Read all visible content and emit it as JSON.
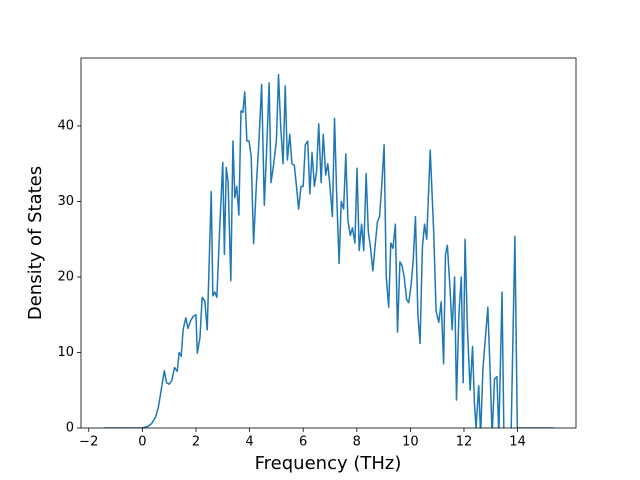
{
  "chart_data": {
    "type": "line",
    "xlabel": "Frequency (THz)",
    "ylabel": "Density of States",
    "x": [
      -1.45,
      -0.5,
      0,
      0.2,
      0.35,
      0.5,
      0.6,
      0.7,
      0.82,
      0.9,
      1.0,
      1.1,
      1.2,
      1.3,
      1.37,
      1.45,
      1.52,
      1.62,
      1.7,
      1.8,
      1.9,
      2.0,
      2.05,
      2.15,
      2.23,
      2.33,
      2.42,
      2.57,
      2.63,
      2.7,
      2.78,
      2.88,
      3.0,
      3.06,
      3.13,
      3.2,
      3.3,
      3.38,
      3.45,
      3.52,
      3.6,
      3.68,
      3.75,
      3.82,
      3.9,
      3.98,
      4.06,
      4.15,
      4.25,
      4.35,
      4.45,
      4.55,
      4.65,
      4.73,
      4.8,
      4.9,
      5.0,
      5.08,
      5.16,
      5.25,
      5.33,
      5.41,
      5.5,
      5.58,
      5.67,
      5.75,
      5.83,
      5.92,
      6.0,
      6.08,
      6.17,
      6.25,
      6.33,
      6.42,
      6.5,
      6.58,
      6.67,
      6.75,
      6.84,
      6.92,
      7.0,
      7.09,
      7.17,
      7.25,
      7.34,
      7.42,
      7.51,
      7.59,
      7.67,
      7.76,
      7.84,
      7.93,
      8.01,
      8.09,
      8.18,
      8.26,
      8.35,
      8.43,
      8.51,
      8.6,
      8.68,
      8.77,
      8.85,
      8.93,
      9.02,
      9.1,
      9.19,
      9.27,
      9.35,
      9.44,
      9.52,
      9.61,
      9.69,
      9.77,
      9.86,
      9.94,
      10.03,
      10.11,
      10.19,
      10.28,
      10.36,
      10.45,
      10.53,
      10.61,
      10.74,
      10.87,
      10.96,
      11.06,
      11.15,
      11.24,
      11.31,
      11.38,
      11.47,
      11.56,
      11.65,
      11.72,
      11.81,
      11.9,
      11.97,
      12.04,
      12.13,
      12.23,
      12.32,
      12.39,
      12.45,
      12.55,
      12.62,
      12.71,
      12.8,
      12.89,
      12.98,
      13.05,
      13.14,
      13.23,
      13.3,
      13.42,
      13.49,
      13.76,
      13.9,
      13.99,
      14.1,
      14.5,
      15.34
    ],
    "series": [
      {
        "color": "#1f77b4",
        "values": [
          0,
          0,
          0,
          0.2,
          0.6,
          1.5,
          2.8,
          5,
          7.6,
          6,
          5.8,
          6.3,
          8,
          7.5,
          10,
          9.5,
          13,
          14.6,
          13.2,
          14.2,
          14.8,
          15,
          9.9,
          12,
          17.3,
          16.8,
          13,
          31.3,
          17.5,
          18,
          17.3,
          26,
          35.2,
          23,
          34.5,
          32.5,
          19.5,
          38,
          30.5,
          32,
          28.2,
          42,
          41.8,
          44.5,
          38,
          38,
          36,
          24.4,
          32,
          38,
          45.5,
          29.5,
          38,
          45.7,
          32.5,
          35,
          38,
          46.8,
          40,
          35,
          45.3,
          35.5,
          38.9,
          35,
          34.8,
          32,
          29,
          32,
          32,
          37.5,
          38,
          31,
          36.5,
          32,
          34,
          40.3,
          32.5,
          38.9,
          33.5,
          35,
          32,
          28,
          41,
          31,
          21.8,
          30,
          29,
          36.3,
          27.5,
          25.5,
          26.5,
          24.5,
          34.4,
          23.5,
          27,
          23.5,
          33.7,
          26,
          24,
          20.8,
          24,
          27.3,
          28,
          32,
          37.5,
          20,
          16,
          24.5,
          23.8,
          27,
          12.7,
          22,
          21.5,
          20,
          17,
          16.6,
          19,
          22.5,
          28,
          15,
          11.2,
          24,
          27,
          25,
          36.8,
          26,
          15.5,
          14,
          16.7,
          8.5,
          23,
          24.2,
          19,
          13,
          20,
          3.7,
          15,
          20,
          6,
          25,
          13,
          5,
          10.8,
          3.3,
          0,
          5.6,
          -1,
          8,
          12,
          16,
          7,
          -1,
          6.5,
          6.8,
          -1,
          18,
          -1,
          -0.5,
          25.4,
          0,
          0,
          0,
          0
        ]
      }
    ],
    "xlim": [
      -2.29,
      16.18
    ],
    "ylim": [
      0,
      49
    ],
    "xticks": [
      {
        "value": -2,
        "label": "−2"
      },
      0,
      2,
      4,
      6,
      8,
      10,
      12,
      14
    ],
    "yticks": [
      0,
      10,
      20,
      30,
      40
    ],
    "grid": false
  }
}
